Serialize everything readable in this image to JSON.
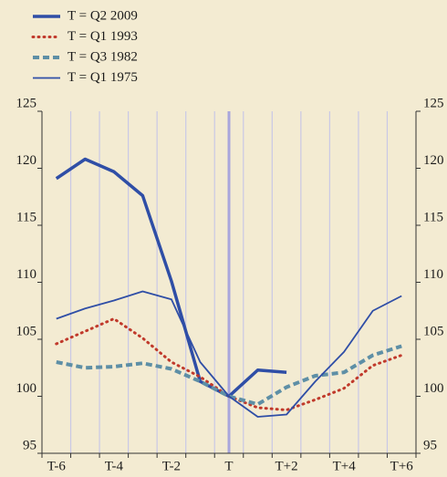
{
  "chart_data": {
    "type": "line",
    "categories": [
      "T-6",
      null,
      "T-4",
      null,
      "T-2",
      null,
      "T",
      null,
      "T+2",
      null,
      "T+4",
      null,
      "T+6"
    ],
    "reference_category": "T",
    "series": [
      {
        "name": "T = Q2 2009",
        "color": "#2f4ea6",
        "style": "thick",
        "values": [
          119.1,
          120.8,
          119.7,
          117.6,
          110.1,
          101.3,
          100,
          102.3,
          102.1,
          null,
          null,
          null,
          null
        ]
      },
      {
        "name": "T = Q1 1993",
        "color": "#c0392b",
        "style": "dotted",
        "values": [
          104.6,
          105.7,
          106.8,
          105.1,
          103,
          101.7,
          100,
          99,
          98.8,
          99.7,
          100.7,
          102.7,
          103.6
        ]
      },
      {
        "name": "T = Q3 1982",
        "color": "#5e8fa6",
        "style": "dashed",
        "values": [
          103,
          102.5,
          102.6,
          102.9,
          102.4,
          101.3,
          100,
          99.3,
          100.8,
          101.8,
          102.1,
          103.6,
          104.4
        ]
      },
      {
        "name": "T = Q1 1975",
        "color": "#2f4ea6",
        "style": "thin",
        "values": [
          106.8,
          107.7,
          108.4,
          109.2,
          108.5,
          103,
          100,
          98.2,
          98.4,
          101.3,
          103.9,
          107.5,
          108.8
        ]
      }
    ],
    "ylim": [
      95,
      125
    ],
    "yticks": [
      95,
      100,
      105,
      110,
      115,
      120,
      125
    ],
    "y2lim": [
      95,
      125
    ],
    "y2ticks": [
      95,
      100,
      105,
      110,
      115,
      120,
      125
    ]
  }
}
